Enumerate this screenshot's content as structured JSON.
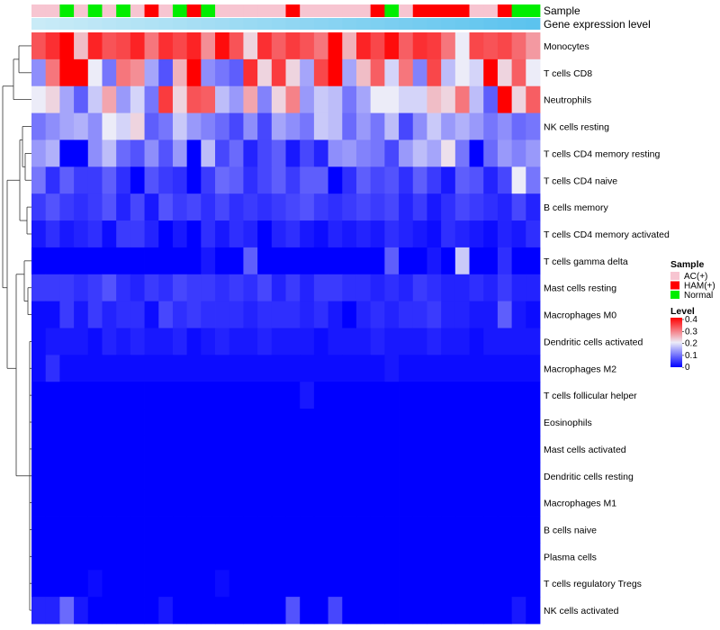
{
  "chart_data": {
    "type": "heatmap",
    "title": "",
    "annotation_labels": {
      "sample": "Sample",
      "gene_expression": "Gene expression level"
    },
    "columns": 36,
    "row_labels": [
      "Monocytes",
      "T cells CD8",
      "Neutrophils",
      "NK cells resting",
      "T cells CD4 memory resting",
      "T cells CD4 naive",
      "B cells memory",
      "T cells CD4 memory activated",
      "T cells gamma delta",
      "Mast cells resting",
      "Macrophages M0",
      "Dendritic cells activated",
      "Macrophages M2",
      "T cells follicular helper",
      "Eosinophils",
      "Mast cells activated",
      "Dendritic cells resting",
      "Macrophages M1",
      "B cells naive",
      "Plasma cells",
      "T cells regulatory  Tregs",
      "NK cells activated"
    ],
    "sample_groups": [
      "AC(+)",
      "AC(+)",
      "Normal",
      "AC(+)",
      "Normal",
      "AC(+)",
      "Normal",
      "AC(+)",
      "HAM(+)",
      "AC(+)",
      "Normal",
      "HAM(+)",
      "Normal",
      "AC(+)",
      "AC(+)",
      "AC(+)",
      "AC(+)",
      "AC(+)",
      "HAM(+)",
      "AC(+)",
      "AC(+)",
      "AC(+)",
      "AC(+)",
      "AC(+)",
      "HAM(+)",
      "Normal",
      "AC(+)",
      "HAM(+)",
      "HAM(+)",
      "HAM(+)",
      "HAM(+)",
      "AC(+)",
      "AC(+)",
      "HAM(+)",
      "Normal",
      "Normal"
    ],
    "values": [
      [
        0.33,
        0.36,
        0.4,
        0.24,
        0.37,
        0.33,
        0.34,
        0.37,
        0.3,
        0.36,
        0.34,
        0.37,
        0.28,
        0.39,
        0.33,
        0.22,
        0.36,
        0.32,
        0.35,
        0.33,
        0.3,
        0.4,
        0.25,
        0.37,
        0.34,
        0.39,
        0.32,
        0.36,
        0.35,
        0.3,
        0.2,
        0.34,
        0.33,
        0.34,
        0.31,
        0.27
      ],
      [
        0.12,
        0.3,
        0.4,
        0.4,
        0.2,
        0.1,
        0.3,
        0.28,
        0.14,
        0.07,
        0.25,
        0.4,
        0.12,
        0.1,
        0.08,
        0.36,
        0.22,
        0.35,
        0.22,
        0.14,
        0.34,
        0.4,
        0.14,
        0.24,
        0.32,
        0.18,
        0.3,
        0.11,
        0.34,
        0.16,
        0.2,
        0.18,
        0.4,
        0.22,
        0.32,
        0.2
      ],
      [
        0.2,
        0.22,
        0.14,
        0.08,
        0.17,
        0.26,
        0.13,
        0.18,
        0.1,
        0.35,
        0.22,
        0.33,
        0.32,
        0.16,
        0.13,
        0.26,
        0.11,
        0.22,
        0.29,
        0.13,
        0.17,
        0.16,
        0.1,
        0.14,
        0.2,
        0.2,
        0.18,
        0.18,
        0.24,
        0.22,
        0.3,
        0.16,
        0.08,
        0.4,
        0.22,
        0.32
      ],
      [
        0.1,
        0.12,
        0.14,
        0.15,
        0.12,
        0.2,
        0.18,
        0.22,
        0.08,
        0.1,
        0.17,
        0.13,
        0.11,
        0.09,
        0.06,
        0.12,
        0.06,
        0.14,
        0.12,
        0.1,
        0.17,
        0.16,
        0.09,
        0.13,
        0.1,
        0.16,
        0.06,
        0.12,
        0.17,
        0.13,
        0.15,
        0.13,
        0.1,
        0.12,
        0.09,
        0.1
      ],
      [
        0.13,
        0.15,
        0.0,
        0.0,
        0.12,
        0.16,
        0.09,
        0.07,
        0.12,
        0.07,
        0.13,
        0.0,
        0.16,
        0.06,
        0.09,
        0.03,
        0.06,
        0.08,
        0.02,
        0.06,
        0.03,
        0.12,
        0.13,
        0.11,
        0.1,
        0.06,
        0.13,
        0.16,
        0.14,
        0.21,
        0.1,
        0.0,
        0.09,
        0.13,
        0.11,
        0.13
      ],
      [
        0.1,
        0.04,
        0.08,
        0.05,
        0.05,
        0.08,
        0.04,
        0.0,
        0.07,
        0.05,
        0.04,
        0.0,
        0.05,
        0.09,
        0.08,
        0.04,
        0.06,
        0.08,
        0.05,
        0.08,
        0.08,
        0.0,
        0.04,
        0.08,
        0.06,
        0.07,
        0.04,
        0.08,
        0.05,
        0.02,
        0.08,
        0.07,
        0.03,
        0.06,
        0.2,
        0.1
      ],
      [
        0.05,
        0.07,
        0.05,
        0.04,
        0.05,
        0.07,
        0.03,
        0.06,
        0.02,
        0.07,
        0.05,
        0.06,
        0.04,
        0.06,
        0.04,
        0.05,
        0.04,
        0.05,
        0.06,
        0.07,
        0.05,
        0.04,
        0.05,
        0.06,
        0.05,
        0.06,
        0.03,
        0.05,
        0.02,
        0.04,
        0.06,
        0.05,
        0.04,
        0.03,
        0.06,
        0.03
      ],
      [
        0.02,
        0.04,
        0.02,
        0.03,
        0.04,
        0.01,
        0.05,
        0.05,
        0.03,
        0.0,
        0.02,
        0.0,
        0.04,
        0.02,
        0.04,
        0.03,
        0.0,
        0.03,
        0.04,
        0.02,
        0.01,
        0.03,
        0.02,
        0.03,
        0.02,
        0.04,
        0.03,
        0.02,
        0.01,
        0.04,
        0.03,
        0.02,
        0.01,
        0.03,
        0.02,
        0.04
      ],
      [
        0.0,
        0.0,
        0.0,
        0.0,
        0.0,
        0.0,
        0.0,
        0.0,
        0.0,
        0.0,
        0.0,
        0.0,
        0.02,
        0.0,
        0.0,
        0.08,
        0.0,
        0.0,
        0.0,
        0.0,
        0.0,
        0.0,
        0.0,
        0.0,
        0.0,
        0.08,
        0.0,
        0.0,
        0.02,
        0.0,
        0.17,
        0.0,
        0.0,
        0.04,
        0.0,
        0.0
      ],
      [
        0.05,
        0.05,
        0.05,
        0.04,
        0.05,
        0.07,
        0.04,
        0.03,
        0.05,
        0.04,
        0.06,
        0.05,
        0.05,
        0.04,
        0.05,
        0.04,
        0.06,
        0.03,
        0.05,
        0.03,
        0.05,
        0.05,
        0.04,
        0.04,
        0.03,
        0.04,
        0.03,
        0.05,
        0.04,
        0.03,
        0.03,
        0.04,
        0.03,
        0.05,
        0.03,
        0.03
      ],
      [
        0.01,
        0.01,
        0.05,
        0.02,
        0.05,
        0.03,
        0.04,
        0.04,
        0.01,
        0.06,
        0.04,
        0.05,
        0.04,
        0.04,
        0.04,
        0.03,
        0.04,
        0.04,
        0.04,
        0.03,
        0.04,
        0.02,
        0.0,
        0.03,
        0.04,
        0.03,
        0.04,
        0.04,
        0.05,
        0.03,
        0.03,
        0.02,
        0.02,
        0.08,
        0.02,
        0.01
      ],
      [
        0.01,
        0.02,
        0.02,
        0.02,
        0.01,
        0.03,
        0.02,
        0.03,
        0.02,
        0.02,
        0.03,
        0.01,
        0.02,
        0.03,
        0.02,
        0.02,
        0.03,
        0.02,
        0.02,
        0.02,
        0.01,
        0.02,
        0.02,
        0.02,
        0.03,
        0.02,
        0.02,
        0.02,
        0.03,
        0.02,
        0.02,
        0.01,
        0.02,
        0.02,
        0.02,
        0.02
      ],
      [
        0.01,
        0.04,
        0.01,
        0.01,
        0.01,
        0.01,
        0.01,
        0.01,
        0.01,
        0.01,
        0.01,
        0.01,
        0.01,
        0.01,
        0.01,
        0.01,
        0.01,
        0.01,
        0.01,
        0.01,
        0.01,
        0.01,
        0.01,
        0.01,
        0.01,
        0.02,
        0.01,
        0.01,
        0.01,
        0.01,
        0.01,
        0.01,
        0.01,
        0.01,
        0.01,
        0.01
      ],
      [
        0.0,
        0.0,
        0.0,
        0.0,
        0.0,
        0.0,
        0.0,
        0.0,
        0.0,
        0.0,
        0.0,
        0.0,
        0.0,
        0.0,
        0.0,
        0.0,
        0.0,
        0.0,
        0.0,
        0.02,
        0.0,
        0.0,
        0.0,
        0.0,
        0.0,
        0.0,
        0.0,
        0.0,
        0.0,
        0.0,
        0.0,
        0.0,
        0.0,
        0.0,
        0.0,
        0.0
      ],
      [
        0.0,
        0.0,
        0.0,
        0.0,
        0.0,
        0.0,
        0.0,
        0.0,
        0.0,
        0.0,
        0.0,
        0.0,
        0.0,
        0.0,
        0.0,
        0.0,
        0.0,
        0.0,
        0.0,
        0.0,
        0.0,
        0.0,
        0.0,
        0.0,
        0.0,
        0.0,
        0.0,
        0.0,
        0.0,
        0.0,
        0.0,
        0.0,
        0.0,
        0.0,
        0.0,
        0.0
      ],
      [
        0.0,
        0.0,
        0.0,
        0.0,
        0.0,
        0.0,
        0.0,
        0.0,
        0.0,
        0.0,
        0.0,
        0.0,
        0.0,
        0.0,
        0.0,
        0.0,
        0.0,
        0.0,
        0.0,
        0.0,
        0.0,
        0.0,
        0.0,
        0.0,
        0.0,
        0.0,
        0.0,
        0.0,
        0.0,
        0.0,
        0.0,
        0.0,
        0.0,
        0.0,
        0.0,
        0.0
      ],
      [
        0.0,
        0.0,
        0.0,
        0.0,
        0.0,
        0.0,
        0.0,
        0.0,
        0.0,
        0.0,
        0.0,
        0.0,
        0.0,
        0.0,
        0.0,
        0.0,
        0.0,
        0.0,
        0.0,
        0.0,
        0.0,
        0.0,
        0.0,
        0.0,
        0.0,
        0.0,
        0.0,
        0.0,
        0.0,
        0.0,
        0.0,
        0.0,
        0.0,
        0.0,
        0.0,
        0.0
      ],
      [
        0.0,
        0.0,
        0.0,
        0.0,
        0.0,
        0.0,
        0.0,
        0.0,
        0.0,
        0.0,
        0.0,
        0.0,
        0.0,
        0.0,
        0.0,
        0.0,
        0.0,
        0.0,
        0.0,
        0.0,
        0.0,
        0.0,
        0.0,
        0.0,
        0.0,
        0.0,
        0.0,
        0.0,
        0.0,
        0.0,
        0.0,
        0.0,
        0.0,
        0.0,
        0.0,
        0.0
      ],
      [
        0.0,
        0.0,
        0.0,
        0.0,
        0.0,
        0.0,
        0.0,
        0.0,
        0.0,
        0.0,
        0.0,
        0.0,
        0.0,
        0.0,
        0.0,
        0.0,
        0.0,
        0.0,
        0.0,
        0.0,
        0.0,
        0.0,
        0.0,
        0.0,
        0.0,
        0.0,
        0.0,
        0.0,
        0.0,
        0.0,
        0.0,
        0.0,
        0.0,
        0.0,
        0.0,
        0.0
      ],
      [
        0.0,
        0.0,
        0.0,
        0.0,
        0.0,
        0.0,
        0.0,
        0.0,
        0.0,
        0.0,
        0.0,
        0.0,
        0.0,
        0.0,
        0.0,
        0.0,
        0.0,
        0.0,
        0.0,
        0.0,
        0.0,
        0.0,
        0.0,
        0.0,
        0.0,
        0.0,
        0.0,
        0.0,
        0.0,
        0.0,
        0.0,
        0.0,
        0.0,
        0.0,
        0.0,
        0.0
      ],
      [
        0.0,
        0.0,
        0.0,
        0.0,
        0.01,
        0.0,
        0.0,
        0.0,
        0.0,
        0.0,
        0.0,
        0.0,
        0.0,
        0.01,
        0.0,
        0.0,
        0.0,
        0.0,
        0.0,
        0.0,
        0.0,
        0.0,
        0.0,
        0.0,
        0.0,
        0.0,
        0.0,
        0.0,
        0.0,
        0.0,
        0.0,
        0.0,
        0.0,
        0.0,
        0.0,
        0.0
      ],
      [
        0.03,
        0.03,
        0.09,
        0.02,
        0.0,
        0.0,
        0.0,
        0.0,
        0.0,
        0.02,
        0.0,
        0.0,
        0.0,
        0.0,
        0.0,
        0.0,
        0.0,
        0.0,
        0.07,
        0.0,
        0.0,
        0.06,
        0.0,
        0.0,
        0.0,
        0.0,
        0.0,
        0.0,
        0.0,
        0.0,
        0.0,
        0.0,
        0.0,
        0.0,
        0.02,
        0.0
      ]
    ],
    "color_scale": {
      "low": "#0000FF",
      "mid": "#ECECF8",
      "high": "#FF0000",
      "mid_value": 0.2,
      "range": [
        0,
        0.4
      ]
    },
    "legend": {
      "sample_title": "Sample",
      "groups": [
        {
          "label": "AC(+)",
          "color": "#F7C5D1"
        },
        {
          "label": "HAM(+)",
          "color": "#FF0000"
        },
        {
          "label": "Normal",
          "color": "#00EE00"
        }
      ],
      "level_title": "Level",
      "level_ticks": [
        "0.4",
        "0.3",
        "0.2",
        "0.1",
        "0"
      ],
      "position": "right"
    },
    "gene_expression_bar_colors": [
      "#C9EBF7",
      "#5CC3EE"
    ]
  }
}
